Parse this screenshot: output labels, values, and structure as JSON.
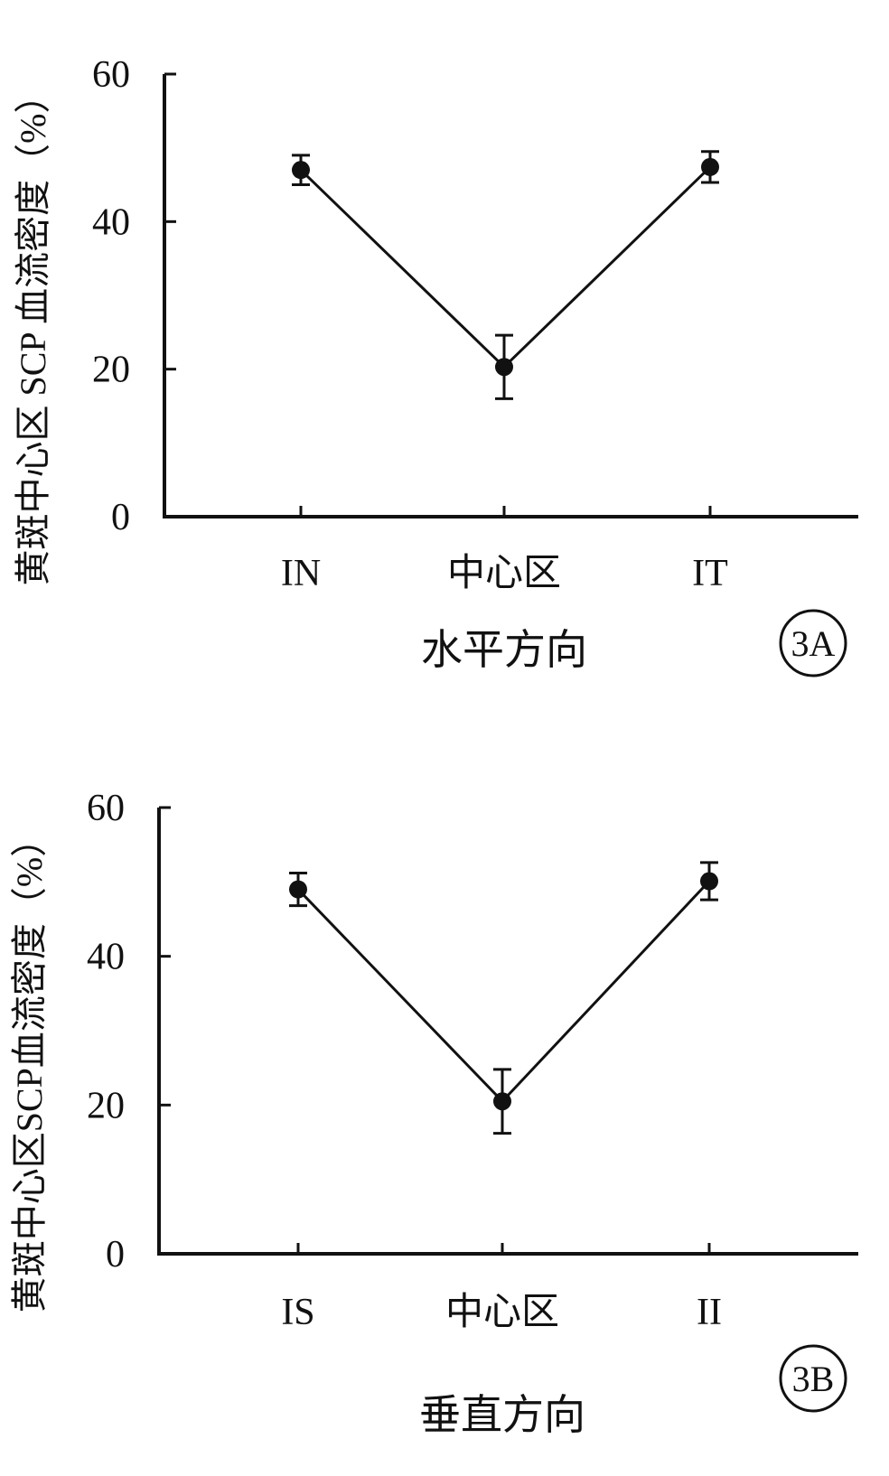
{
  "chart_data": [
    {
      "type": "line",
      "panel_label": "3A",
      "categories": [
        "IN",
        "中心区",
        "IT"
      ],
      "series": [
        {
          "values": [
            47.0,
            20.3,
            47.4
          ],
          "error": [
            2.0,
            4.3,
            2.1
          ]
        }
      ],
      "xlabel": "水平方向",
      "ylabel": "黄斑中心区 SCP 血流密度（%）",
      "ylim": [
        0,
        60
      ],
      "yticks": [
        "0",
        "20",
        "40",
        "60"
      ],
      "grid": false,
      "color": "#111111"
    },
    {
      "type": "line",
      "panel_label": "3B",
      "categories": [
        "IS",
        "中心区",
        "II"
      ],
      "series": [
        {
          "values": [
            49.0,
            20.5,
            50.1
          ],
          "error": [
            2.2,
            4.3,
            2.5
          ]
        }
      ],
      "xlabel": "垂直方向",
      "ylabel": "黄斑中心区SCP血流密度（%）",
      "ylim": [
        0,
        60
      ],
      "yticks": [
        "0",
        "20",
        "40",
        "60"
      ],
      "grid": false,
      "color": "#111111"
    }
  ]
}
